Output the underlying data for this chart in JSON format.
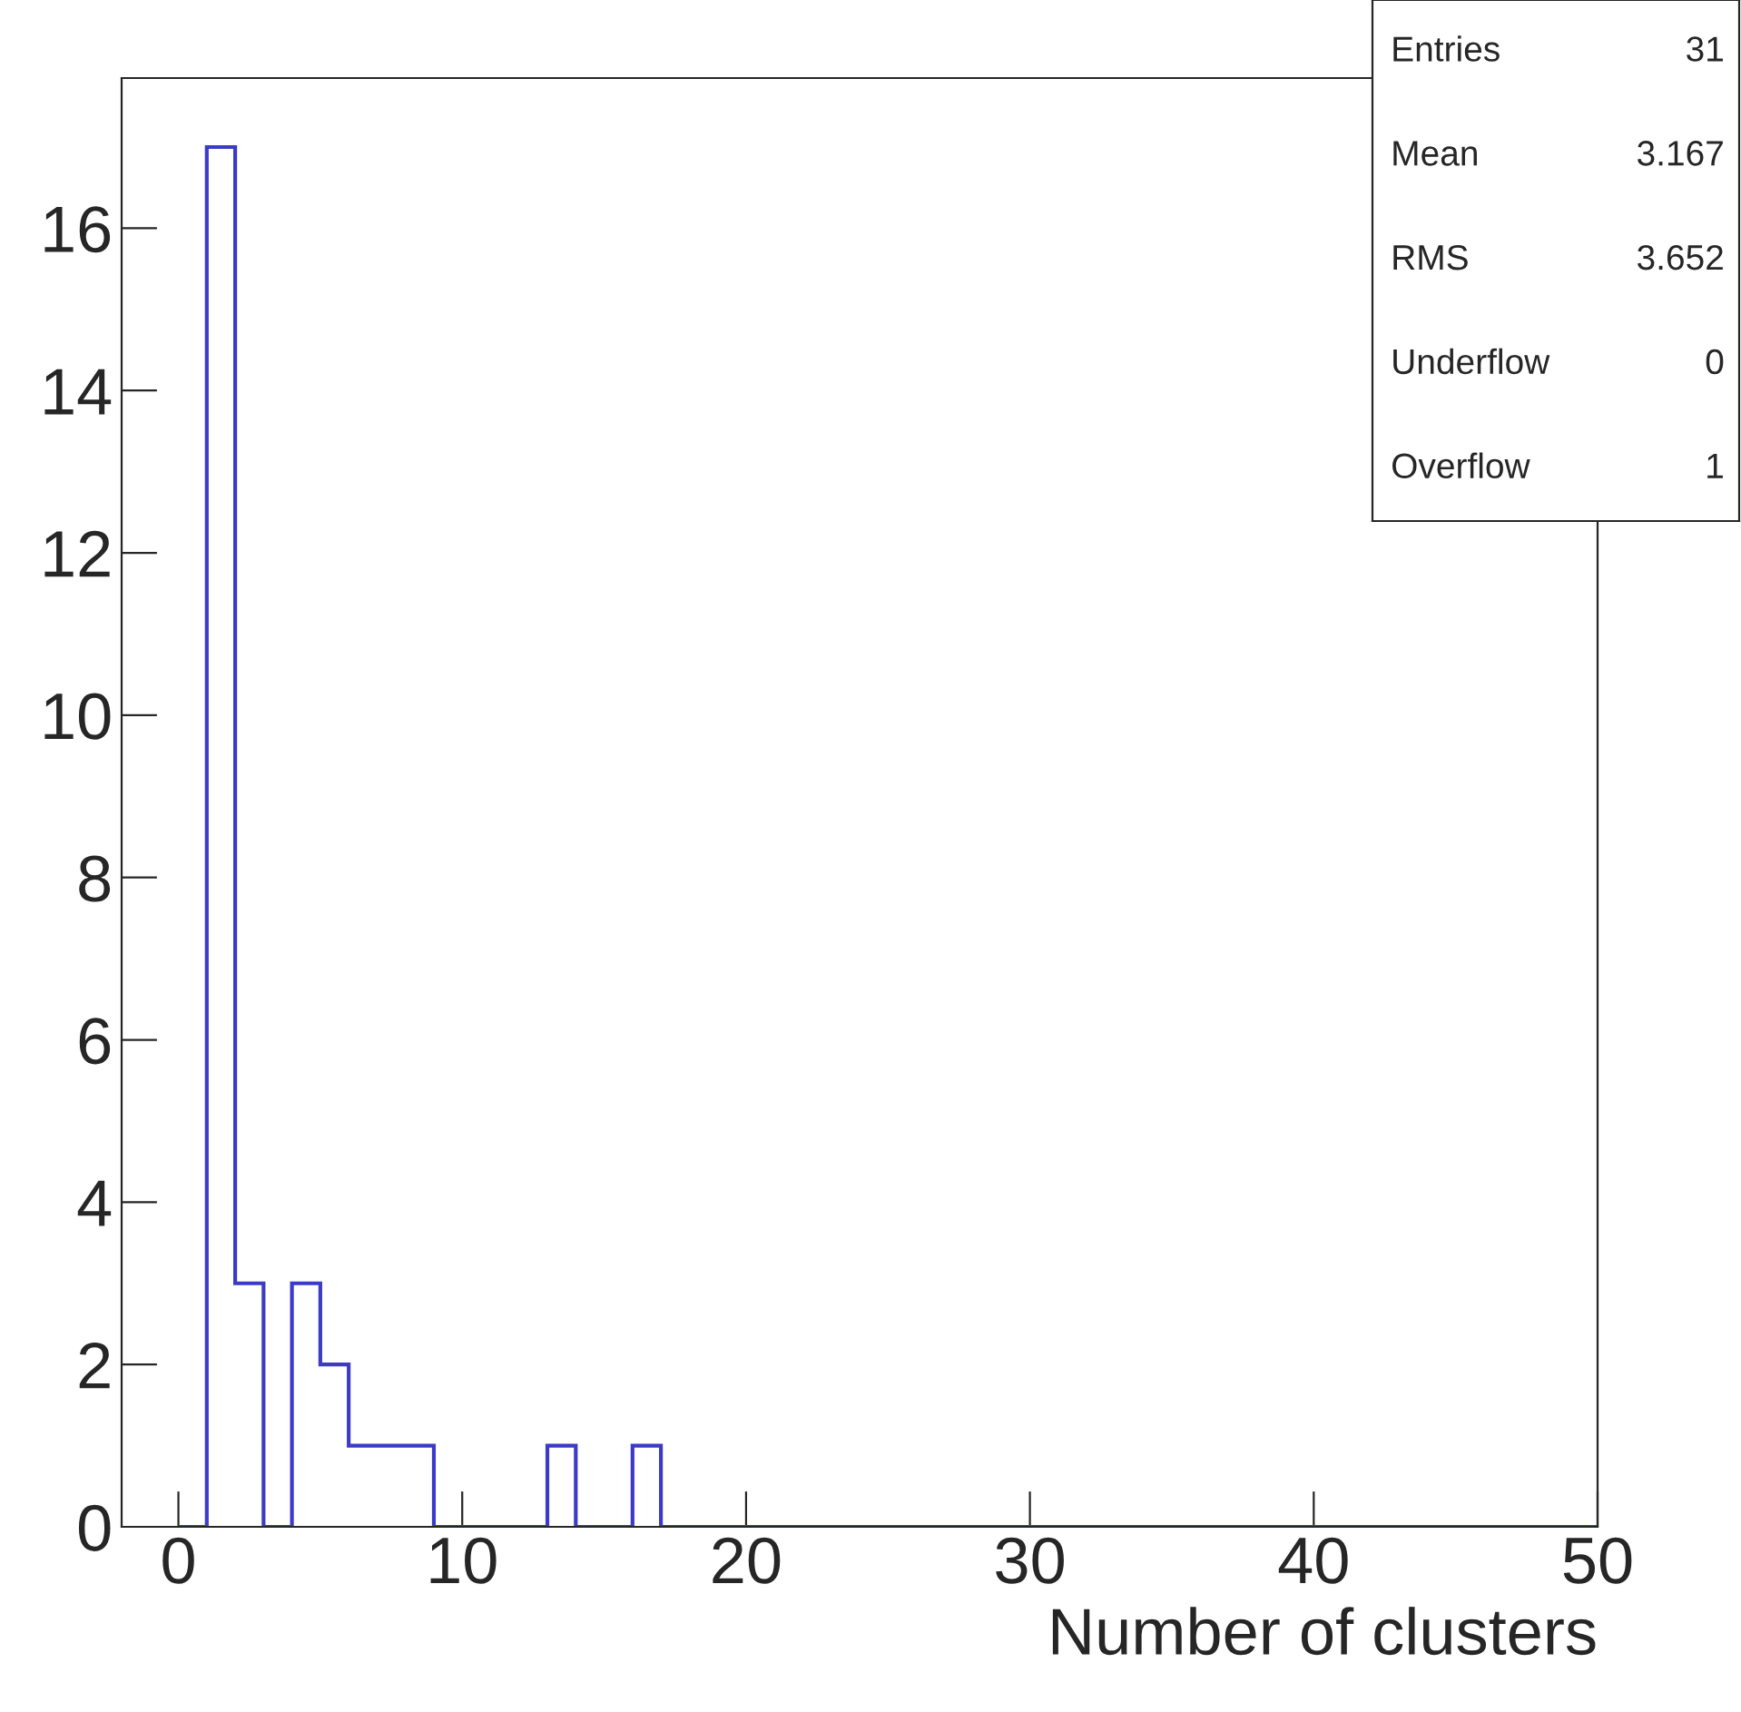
{
  "chart_data": {
    "type": "histogram",
    "xlabel": "Number of clusters",
    "bins": [
      0,
      1,
      2,
      3,
      4,
      5,
      6,
      7,
      8,
      9,
      10,
      11,
      12,
      13,
      14,
      15,
      16,
      17,
      18,
      19,
      20,
      21,
      22,
      23,
      24,
      25,
      26,
      27,
      28,
      29,
      30,
      31,
      32,
      33,
      34,
      35,
      36,
      37,
      38,
      39,
      40,
      41,
      42,
      43,
      44,
      45,
      46,
      47,
      48,
      49,
      50
    ],
    "values": [
      0,
      17,
      3,
      0,
      3,
      2,
      1,
      1,
      1,
      0,
      0,
      0,
      0,
      1,
      0,
      0,
      1,
      0,
      0,
      0,
      0,
      0,
      0,
      0,
      0,
      0,
      0,
      0,
      0,
      0,
      0,
      0,
      0,
      0,
      0,
      0,
      0,
      0,
      0,
      0,
      0,
      0,
      0,
      0,
      0,
      0,
      0,
      0,
      0,
      0
    ],
    "color": "#3b3bc8",
    "xlim": [
      -2,
      50
    ],
    "xticks": [
      0,
      10,
      20,
      30,
      40,
      50
    ],
    "ylim": [
      0,
      17.85
    ],
    "yticks": [
      0,
      2,
      4,
      6,
      8,
      10,
      12,
      14,
      16
    ],
    "grid": false,
    "annotations": [
      "Entries",
      "31",
      "Mean",
      "3.167",
      "RMS",
      "3.652",
      "Underflow",
      "0",
      "Overflow",
      "1"
    ]
  }
}
